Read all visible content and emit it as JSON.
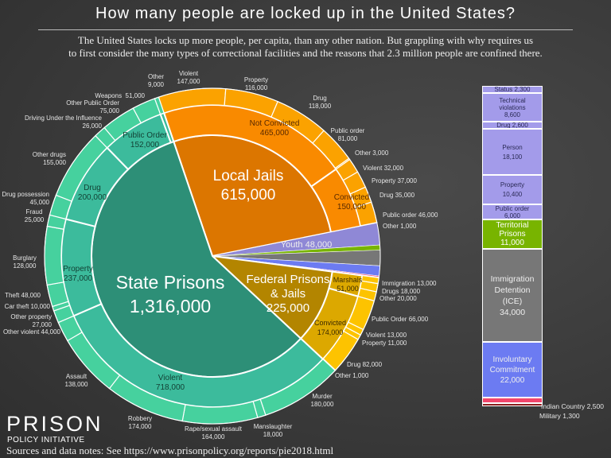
{
  "header": {
    "title": "How many people are locked up in the United States?",
    "subtitle_line1": "The United States locks up more people, per capita, than any other nation.  But grappling with why requires us",
    "subtitle_line2": "to first consider the many types of correctional facilities and the reasons that 2.3 million people are confined there."
  },
  "footer": {
    "logo_top": "PRISON",
    "logo_bottom": "POLICY INITIATIVE",
    "sources": "Sources and data notes: See https://www.prisonpolicy.org/reports/pie2018.html"
  },
  "chart_data": {
    "type": "pie",
    "title": "How many people are locked up in the United States?",
    "rings": [
      "facility",
      "conviction status / offense group",
      "offense detail"
    ],
    "facilities": [
      {
        "name": "Local Jails",
        "value": 615000,
        "colors": [
          "#dc7600",
          "#f98a00",
          "#fba200"
        ],
        "groups": [
          {
            "name": "Not Convicted",
            "value": 465000,
            "details": [
              {
                "name": "Violent",
                "value": 147000
              },
              {
                "name": "Property",
                "value": 116000
              },
              {
                "name": "Drug",
                "value": 118000
              },
              {
                "name": "Public order",
                "value": 81000
              },
              {
                "name": "Other",
                "value": 3000
              }
            ]
          },
          {
            "name": "Convicted",
            "value": 150000,
            "details": [
              {
                "name": "Violent",
                "value": 32000
              },
              {
                "name": "Property",
                "value": 37000
              },
              {
                "name": "Drug",
                "value": 35000
              },
              {
                "name": "Public order",
                "value": 46000
              },
              {
                "name": "Other",
                "value": 1000
              }
            ]
          }
        ]
      },
      {
        "name": "Youth",
        "value": 48000,
        "colors": [
          "#8f88d6",
          "#a39bea",
          "#a39bea"
        ],
        "details": [
          {
            "name": "Status",
            "value": 2300
          },
          {
            "name": "Technical violations",
            "value": 8600
          },
          {
            "name": "Drug",
            "value": 2600
          },
          {
            "name": "Person",
            "value": 18100
          },
          {
            "name": "Property",
            "value": 10400
          },
          {
            "name": "Public order",
            "value": 6000
          }
        ]
      },
      {
        "name": "Territorial Prisons",
        "value": 11000,
        "colors": [
          "#78b400",
          "#78b400",
          "#78b400"
        ]
      },
      {
        "name": "Immigration Detention (ICE)",
        "value": 34000,
        "colors": [
          "#777777",
          "#7a7a7a",
          "#7a7a7a"
        ]
      },
      {
        "name": "Involuntary Commitment",
        "value": 22000,
        "colors": [
          "#6c7bf2",
          "#6c7bf2",
          "#6c7bf2"
        ]
      },
      {
        "name": "Indian Country",
        "value": 2500,
        "colors": [
          "#f2456b",
          "#f2456b",
          "#f2456b"
        ]
      },
      {
        "name": "Military",
        "value": 1300,
        "colors": [
          "#8a1c1c",
          "#8a1c1c",
          "#8a1c1c"
        ]
      },
      {
        "name": "Federal Prisons & Jails",
        "value": 225000,
        "colors": [
          "#b38500",
          "#dca800",
          "#fdc300"
        ],
        "groups": [
          {
            "name": "Marshals",
            "value": 51000,
            "details": [
              {
                "name": "Immigration",
                "value": 13000
              },
              {
                "name": "Drugs",
                "value": 18000
              },
              {
                "name": "Other",
                "value": 20000
              }
            ]
          },
          {
            "name": "Convicted",
            "value": 174000,
            "details": [
              {
                "name": "Public Order",
                "value": 66000
              },
              {
                "name": "Violent",
                "value": 13000
              },
              {
                "name": "Property",
                "value": 11000
              },
              {
                "name": "Drug",
                "value": 82000
              },
              {
                "name": "Other",
                "value": 1000
              }
            ]
          }
        ]
      },
      {
        "name": "State Prisons",
        "value": 1316000,
        "colors": [
          "#2d8f77",
          "#3cbb9c",
          "#46d19e"
        ],
        "groups": [
          {
            "name": "Violent",
            "value": 718000,
            "details": [
              {
                "name": "Murder",
                "value": 180000
              },
              {
                "name": "Manslaughter",
                "value": 18000
              },
              {
                "name": "Rape/sexual assault",
                "value": 164000
              },
              {
                "name": "Robbery",
                "value": 174000
              },
              {
                "name": "Assault",
                "value": 138000
              },
              {
                "name": "Other violent",
                "value": 44000
              }
            ]
          },
          {
            "name": "Property",
            "value": 237000,
            "details": [
              {
                "name": "Other property",
                "value": 27000
              },
              {
                "name": "Car theft",
                "value": 10000
              },
              {
                "name": "Theft",
                "value": 48000
              },
              {
                "name": "Burglary",
                "value": 128000
              },
              {
                "name": "Fraud",
                "value": 25000
              }
            ]
          },
          {
            "name": "Drug",
            "value": 200000,
            "details": [
              {
                "name": "Drug possession",
                "value": 45000
              },
              {
                "name": "Other drugs",
                "value": 155000
              }
            ]
          },
          {
            "name": "Public Order",
            "value": 152000,
            "details": [
              {
                "name": "Driving Under the Influence",
                "value": 26000
              },
              {
                "name": "Other Public Order",
                "value": 75000
              },
              {
                "name": "Weapons",
                "value": 51000
              }
            ]
          },
          {
            "name": "Other",
            "value": 9000,
            "details": [
              {
                "name": "Other",
                "value": 9000
              }
            ]
          }
        ]
      }
    ]
  }
}
